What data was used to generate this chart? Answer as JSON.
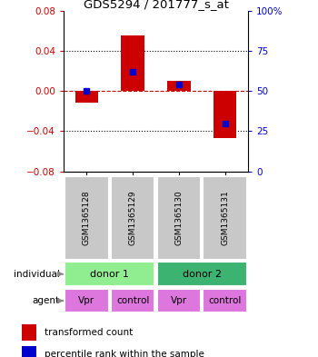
{
  "title": "GDS5294 / 201777_s_at",
  "samples": [
    "GSM1365128",
    "GSM1365129",
    "GSM1365130",
    "GSM1365131"
  ],
  "red_values": [
    -0.012,
    0.055,
    0.01,
    -0.047
  ],
  "blue_values_pct": [
    50,
    62,
    54,
    30
  ],
  "ylim": [
    -0.08,
    0.08
  ],
  "yticks_left": [
    -0.08,
    -0.04,
    0,
    0.04,
    0.08
  ],
  "yticks_right": [
    0,
    25,
    50,
    75,
    100
  ],
  "ytick_labels_right": [
    "0",
    "25",
    "50",
    "75",
    "100%"
  ],
  "agent_labels": [
    "Vpr",
    "control",
    "Vpr",
    "control"
  ],
  "donor1_color": "#90EE90",
  "donor2_color": "#3CB371",
  "agent_color": "#DD77DD",
  "sample_bg_color": "#C8C8C8",
  "red_color": "#CC0000",
  "blue_color": "#0000CC",
  "legend_items": [
    "transformed count",
    "percentile rank within the sample"
  ],
  "bar_width": 0.5
}
